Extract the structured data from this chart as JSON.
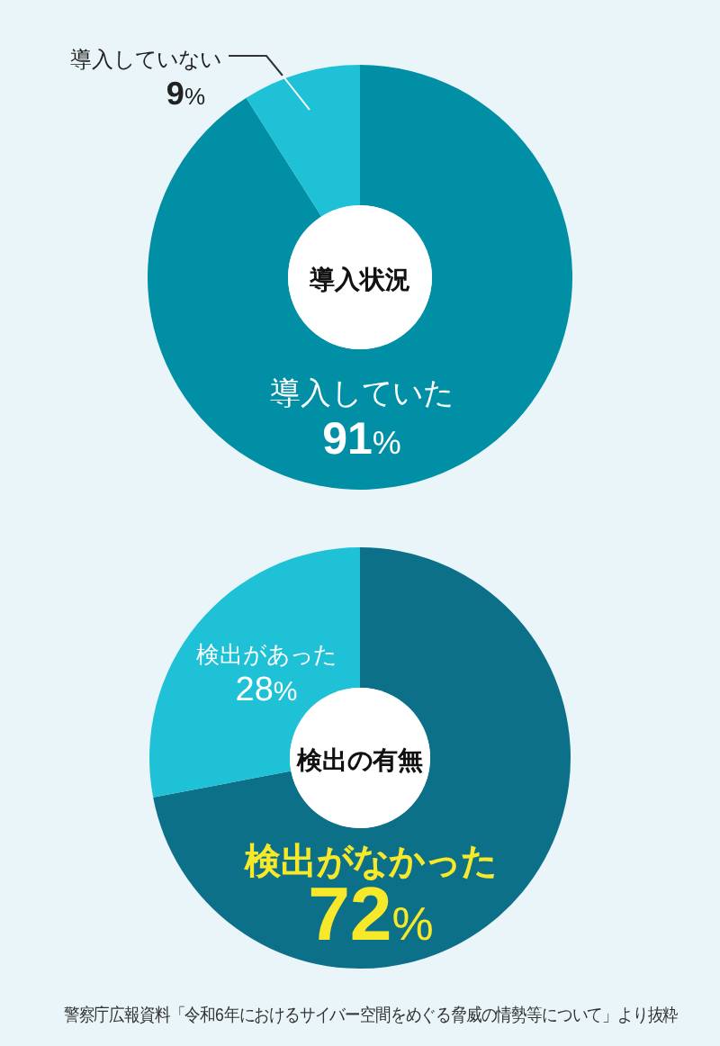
{
  "chart_data": [
    {
      "type": "donut",
      "title": "導入状況",
      "categories": [
        "導入していた",
        "導入していない"
      ],
      "values": [
        91,
        9
      ],
      "colors": [
        "#008fa4",
        "#1fc1d6"
      ],
      "value_labels": [
        "91%",
        "9%"
      ]
    },
    {
      "type": "donut",
      "title": "検出の有無",
      "categories": [
        "検出がなかった",
        "検出があった"
      ],
      "values": [
        72,
        28
      ],
      "colors": [
        "#0d7089",
        "#1fc1d6"
      ],
      "value_labels": [
        "72%",
        "28%"
      ],
      "annotations": [
        "警察庁広報資料「令和6年におけるサイバー空間をめぐる脅威の情勢等について」より抜粋"
      ]
    }
  ]
}
